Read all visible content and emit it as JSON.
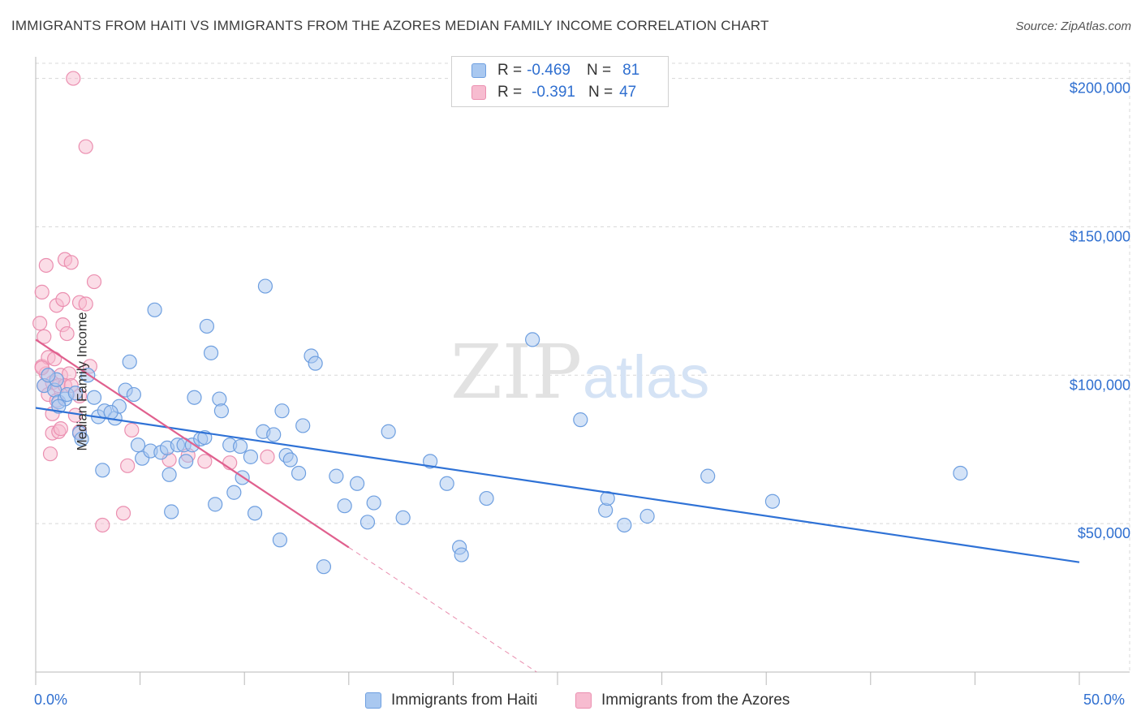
{
  "title": "IMMIGRANTS FROM HAITI VS IMMIGRANTS FROM THE AZORES MEDIAN FAMILY INCOME CORRELATION CHART",
  "source": "Source: ZipAtlas.com",
  "watermark": {
    "zip": "ZIP",
    "atlas": "atlas"
  },
  "colors": {
    "haiti_fill": "#a9c8f0",
    "haiti_stroke": "#6e9fe0",
    "haiti_line": "#2f72d6",
    "azores_fill": "#f7bcd0",
    "azores_stroke": "#eb8fb0",
    "azores_line": "#e0608e",
    "axis_label": "#2f6fd0",
    "grid": "#d8d8d8"
  },
  "legend": {
    "haiti": {
      "r_label": "R =",
      "r_value": "-0.469",
      "n_label": "N =",
      "n_value": "81"
    },
    "azores": {
      "r_label": "R =",
      "r_value": "-0.391",
      "n_label": "N =",
      "n_value": "47"
    }
  },
  "bottom_legend": {
    "haiti": "Immigrants from Haiti",
    "azores": "Immigrants from the Azores"
  },
  "chart_data": {
    "type": "scatter",
    "title": "IMMIGRANTS FROM HAITI VS IMMIGRANTS FROM THE AZORES MEDIAN FAMILY INCOME CORRELATION CHART",
    "xlabel": "",
    "ylabel": "Median Family Income",
    "xlim": [
      0,
      50
    ],
    "ylim": [
      0,
      210000
    ],
    "x_tick_labels": {
      "left": "0.0%",
      "right": "50.0%"
    },
    "y_ticks": [
      {
        "value": 50000,
        "label": "$50,000"
      },
      {
        "value": 100000,
        "label": "$100,000"
      },
      {
        "value": 150000,
        "label": "$150,000"
      },
      {
        "value": 200000,
        "label": "$200,000"
      }
    ],
    "series": [
      {
        "name": "Immigrants from Haiti",
        "trend": {
          "x0": 0,
          "y0": 89000,
          "x1": 50,
          "y1": 37000,
          "dashed_extension": false
        },
        "points": [
          [
            0.4,
            96500
          ],
          [
            0.9,
            95000
          ],
          [
            1.0,
            98500
          ],
          [
            1.1,
            91000
          ],
          [
            1.4,
            92000
          ],
          [
            1.5,
            93500
          ],
          [
            1.1,
            89500
          ],
          [
            2.5,
            100000
          ],
          [
            2.8,
            92500
          ],
          [
            3.0,
            86000
          ],
          [
            3.3,
            88000
          ],
          [
            3.8,
            85500
          ],
          [
            4.0,
            89500
          ],
          [
            4.3,
            95000
          ],
          [
            4.5,
            104500
          ],
          [
            4.7,
            93500
          ],
          [
            2.1,
            80500
          ],
          [
            2.2,
            78500
          ],
          [
            3.2,
            68000
          ],
          [
            4.9,
            76500
          ],
          [
            5.1,
            72000
          ],
          [
            5.5,
            74500
          ],
          [
            5.7,
            122000
          ],
          [
            6.0,
            74000
          ],
          [
            6.3,
            75500
          ],
          [
            6.4,
            66500
          ],
          [
            6.5,
            54000
          ],
          [
            6.8,
            76500
          ],
          [
            7.1,
            76500
          ],
          [
            7.2,
            71000
          ],
          [
            7.5,
            76500
          ],
          [
            7.6,
            92500
          ],
          [
            7.9,
            78500
          ],
          [
            8.1,
            79000
          ],
          [
            8.2,
            116500
          ],
          [
            8.4,
            107500
          ],
          [
            8.6,
            56500
          ],
          [
            8.8,
            92000
          ],
          [
            8.9,
            88000
          ],
          [
            9.3,
            76500
          ],
          [
            9.5,
            60500
          ],
          [
            9.8,
            76000
          ],
          [
            9.9,
            65500
          ],
          [
            10.3,
            72500
          ],
          [
            10.5,
            53500
          ],
          [
            10.9,
            81000
          ],
          [
            11.0,
            130000
          ],
          [
            11.4,
            80000
          ],
          [
            11.7,
            44500
          ],
          [
            11.8,
            88000
          ],
          [
            12.0,
            73000
          ],
          [
            12.2,
            71500
          ],
          [
            12.6,
            67000
          ],
          [
            12.8,
            83000
          ],
          [
            13.2,
            106500
          ],
          [
            13.4,
            104000
          ],
          [
            13.8,
            35500
          ],
          [
            14.4,
            66000
          ],
          [
            14.8,
            56000
          ],
          [
            15.4,
            63500
          ],
          [
            15.9,
            50500
          ],
          [
            16.2,
            57000
          ],
          [
            16.9,
            81000
          ],
          [
            17.6,
            52000
          ],
          [
            18.9,
            71000
          ],
          [
            19.7,
            63500
          ],
          [
            20.3,
            42000
          ],
          [
            20.4,
            39500
          ],
          [
            21.6,
            58500
          ],
          [
            23.8,
            112000
          ],
          [
            26.1,
            85000
          ],
          [
            27.3,
            54500
          ],
          [
            27.4,
            58500
          ],
          [
            28.2,
            49500
          ],
          [
            29.3,
            52500
          ],
          [
            32.2,
            66000
          ],
          [
            35.3,
            57500
          ],
          [
            44.3,
            67000
          ],
          [
            0.6,
            100000
          ],
          [
            1.9,
            94000
          ],
          [
            3.6,
            87500
          ]
        ]
      },
      {
        "name": "Immigrants from the Azores",
        "trend": {
          "x0": 0,
          "y0": 112000,
          "x1": 15,
          "y1": 42000,
          "dashed_extension": true,
          "x_ext": 24,
          "y_ext": 0
        },
        "points": [
          [
            1.8,
            200000
          ],
          [
            2.4,
            177000
          ],
          [
            0.3,
            128000
          ],
          [
            0.5,
            137000
          ],
          [
            1.4,
            139000
          ],
          [
            1.7,
            138000
          ],
          [
            2.8,
            131500
          ],
          [
            1.0,
            123500
          ],
          [
            1.3,
            125500
          ],
          [
            2.1,
            124500
          ],
          [
            2.4,
            124000
          ],
          [
            0.2,
            117500
          ],
          [
            1.3,
            117000
          ],
          [
            0.4,
            113000
          ],
          [
            1.5,
            114000
          ],
          [
            0.3,
            103000
          ],
          [
            0.5,
            100500
          ],
          [
            0.6,
            106000
          ],
          [
            0.9,
            105500
          ],
          [
            1.2,
            100000
          ],
          [
            1.6,
            100500
          ],
          [
            0.4,
            96500
          ],
          [
            0.8,
            97500
          ],
          [
            1.1,
            96500
          ],
          [
            1.4,
            96500
          ],
          [
            1.7,
            96500
          ],
          [
            2.1,
            93000
          ],
          [
            0.6,
            93500
          ],
          [
            1.0,
            91500
          ],
          [
            2.6,
            103000
          ],
          [
            0.8,
            87000
          ],
          [
            1.9,
            86500
          ],
          [
            0.8,
            80500
          ],
          [
            1.1,
            81000
          ],
          [
            1.2,
            82000
          ],
          [
            2.1,
            81000
          ],
          [
            0.7,
            73500
          ],
          [
            4.6,
            81500
          ],
          [
            4.4,
            69500
          ],
          [
            6.4,
            71500
          ],
          [
            7.3,
            73000
          ],
          [
            8.1,
            71000
          ],
          [
            9.3,
            70500
          ],
          [
            11.1,
            72500
          ],
          [
            3.2,
            49500
          ],
          [
            4.2,
            53500
          ],
          [
            0.3,
            102500
          ]
        ]
      }
    ]
  }
}
